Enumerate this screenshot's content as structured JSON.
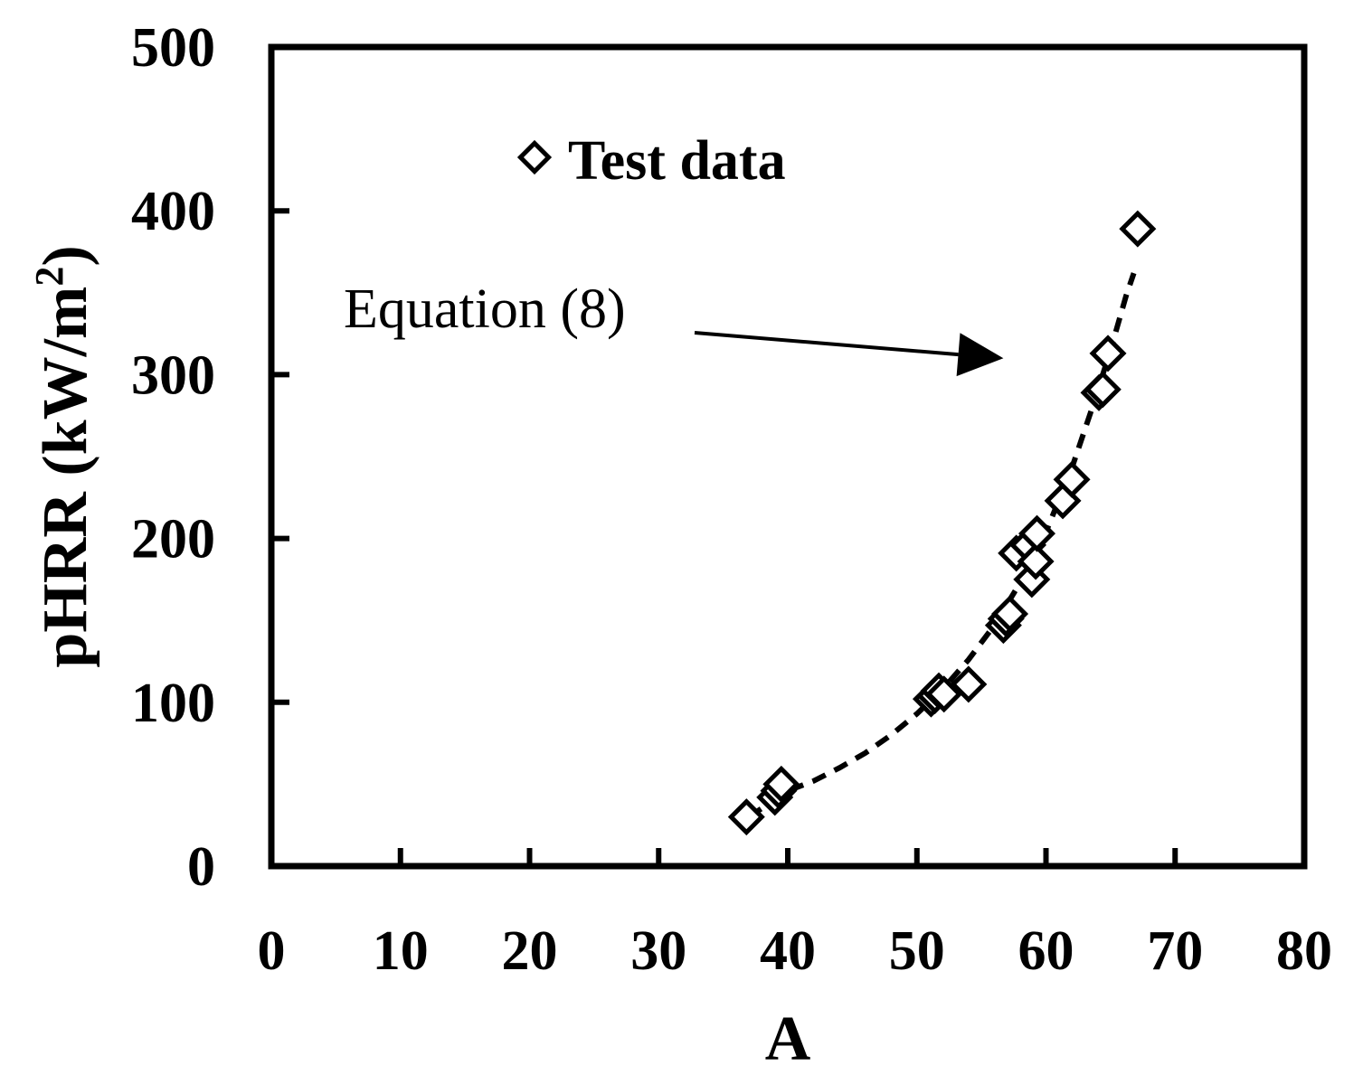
{
  "chart_data": {
    "type": "scatter",
    "xlabel": "A",
    "ylabel": "pHRR (kW/m",
    "ylabel_sup": "2",
    "ylabel_end": ")",
    "xlim": [
      0,
      80
    ],
    "ylim": [
      0,
      500
    ],
    "xticks": [
      0,
      10,
      20,
      30,
      40,
      50,
      60,
      70,
      80
    ],
    "yticks": [
      0,
      100,
      200,
      300,
      400,
      500
    ],
    "grid": false,
    "legend_position": "top-left",
    "colors": {
      "marker": "#000000",
      "line": "#000000"
    },
    "series": [
      {
        "name": "Test data",
        "marker": "diamond-open",
        "points": [
          {
            "x": 36.8,
            "y": 30
          },
          {
            "x": 39.0,
            "y": 42
          },
          {
            "x": 39.3,
            "y": 46
          },
          {
            "x": 39.5,
            "y": 50
          },
          {
            "x": 51.1,
            "y": 102
          },
          {
            "x": 51.4,
            "y": 104
          },
          {
            "x": 51.7,
            "y": 107
          },
          {
            "x": 52.1,
            "y": 105
          },
          {
            "x": 54.0,
            "y": 111
          },
          {
            "x": 56.7,
            "y": 147
          },
          {
            "x": 56.9,
            "y": 151
          },
          {
            "x": 57.2,
            "y": 154
          },
          {
            "x": 57.7,
            "y": 191
          },
          {
            "x": 58.6,
            "y": 196
          },
          {
            "x": 58.9,
            "y": 175
          },
          {
            "x": 59.2,
            "y": 186
          },
          {
            "x": 59.3,
            "y": 203
          },
          {
            "x": 61.3,
            "y": 223
          },
          {
            "x": 62.0,
            "y": 236
          },
          {
            "x": 64.1,
            "y": 289
          },
          {
            "x": 64.4,
            "y": 291
          },
          {
            "x": 64.8,
            "y": 313
          },
          {
            "x": 67.1,
            "y": 389
          }
        ]
      },
      {
        "name": "Equation (8)",
        "style": "dashed",
        "points": [
          {
            "x": 37.0,
            "y": 30
          },
          {
            "x": 38.5,
            "y": 38
          },
          {
            "x": 40.0,
            "y": 46
          },
          {
            "x": 42.0,
            "y": 52
          },
          {
            "x": 44.0,
            "y": 60
          },
          {
            "x": 46.0,
            "y": 69
          },
          {
            "x": 48.0,
            "y": 80
          },
          {
            "x": 50.0,
            "y": 93
          },
          {
            "x": 52.0,
            "y": 108
          },
          {
            "x": 54.0,
            "y": 126
          },
          {
            "x": 56.0,
            "y": 147
          },
          {
            "x": 58.0,
            "y": 173
          },
          {
            "x": 60.0,
            "y": 204
          },
          {
            "x": 62.0,
            "y": 243
          },
          {
            "x": 63.5,
            "y": 278
          },
          {
            "x": 65.0,
            "y": 315
          },
          {
            "x": 66.2,
            "y": 348
          },
          {
            "x": 66.8,
            "y": 362
          }
        ]
      }
    ],
    "annotation": {
      "text": "Equation (8)",
      "arrow_to": {
        "x": 56.7,
        "y": 310
      }
    }
  }
}
